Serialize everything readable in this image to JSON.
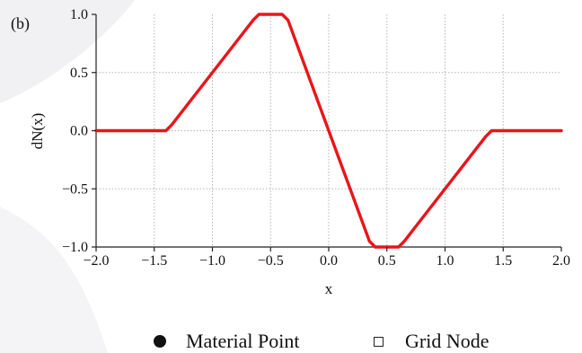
{
  "panel_label": "(b)",
  "legend": {
    "items": [
      {
        "label": "Material Point",
        "marker": "filled-circle"
      },
      {
        "label": "Grid Node",
        "marker": "hollow-square"
      }
    ]
  },
  "colors": {
    "line": "#e8161b",
    "grid": "#b5b5b5",
    "axis": "#222222",
    "background_accent": "#f0f0f2"
  },
  "chart_data": {
    "type": "line",
    "title": "",
    "xlabel": "x",
    "ylabel": "dN(x)",
    "xlim": [
      -2.0,
      2.0
    ],
    "ylim": [
      -1.0,
      1.0
    ],
    "grid": true,
    "x_ticks": [
      -2.0,
      -1.5,
      -1.0,
      -0.5,
      0.0,
      0.5,
      1.0,
      1.5,
      2.0
    ],
    "x_tick_labels": [
      "−2.0",
      "−1.5",
      "−1.0",
      "−0.5",
      "0.0",
      "0.5",
      "1.0",
      "1.5",
      "2.0"
    ],
    "y_ticks": [
      -1.0,
      -0.5,
      0.0,
      0.5,
      1.0
    ],
    "y_tick_labels": [
      "−1.0",
      "−0.5",
      "0.0",
      "0.5",
      "1.0"
    ],
    "series": [
      {
        "x": [
          -2.0,
          -1.4,
          -1.35,
          -0.65,
          -0.6,
          -0.4,
          -0.35,
          0.35,
          0.4,
          0.6,
          0.65,
          1.35,
          1.4,
          2.0
        ],
        "y": [
          0.0,
          0.0,
          0.05,
          0.95,
          1.0,
          1.0,
          0.95,
          -0.95,
          -1.0,
          -1.0,
          -0.95,
          -0.05,
          0.0,
          0.0
        ]
      }
    ]
  }
}
